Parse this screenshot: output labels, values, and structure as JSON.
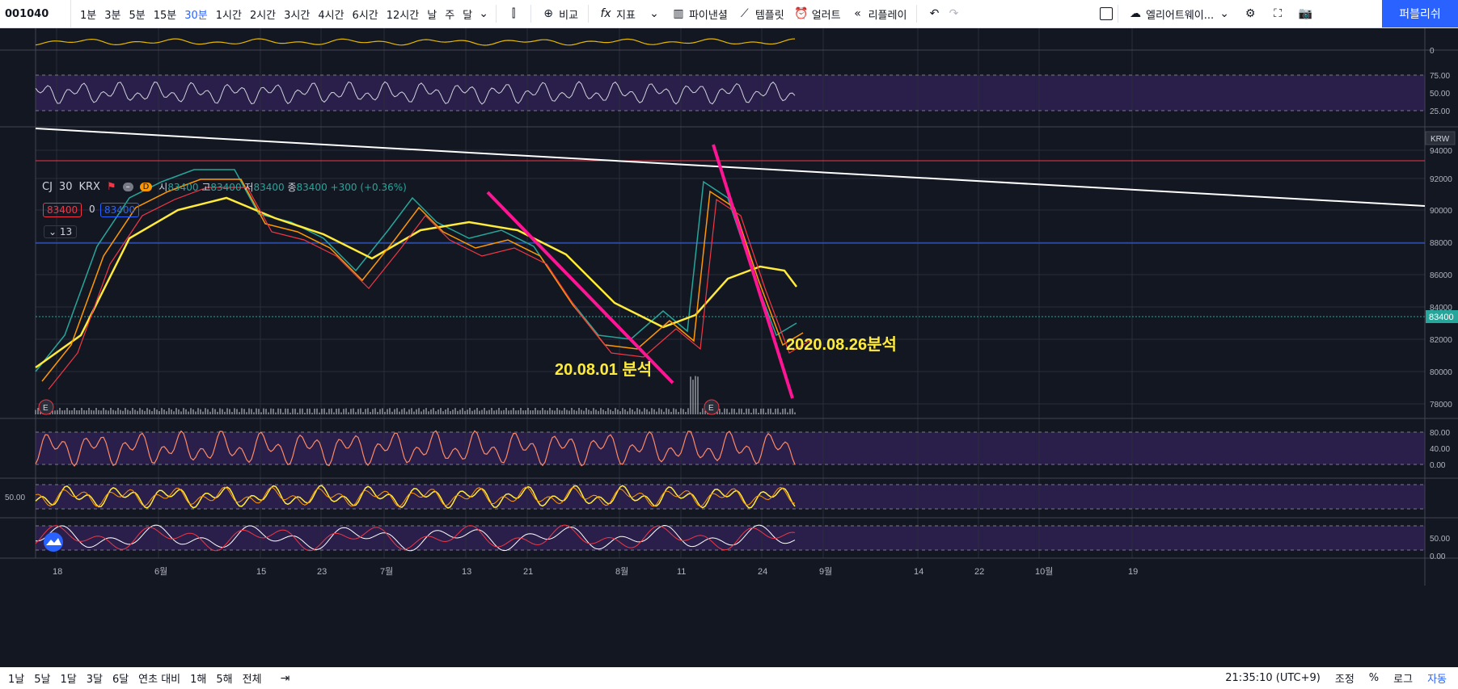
{
  "topbar": {
    "symbol": "001040",
    "timeframes": [
      "1분",
      "3분",
      "5분",
      "15분",
      "30분",
      "1시간",
      "2시간",
      "3시간",
      "4시간",
      "6시간",
      "12시간",
      "날",
      "주",
      "달"
    ],
    "active_timeframe": "30분",
    "compare_label": "비교",
    "indicators_label": "지표",
    "financials_label": "파이낸셜",
    "templates_label": "템플릿",
    "alert_label": "얼러트",
    "replay_label": "리플레이",
    "layout_name": "엘리어트웨이...",
    "publish_label": "퍼블리쉬"
  },
  "legend": {
    "symbol": "CJ",
    "interval": "30",
    "exchange": "KRX",
    "o_label": "시",
    "o": "83400",
    "h_label": "고",
    "h": "83400",
    "l_label": "저",
    "l": "83400",
    "c_label": "종",
    "c": "83400",
    "change": "+300 (+0.36%)",
    "bid": "83400",
    "spread": "0",
    "ask": "83400",
    "collapse_count": "13"
  },
  "price_axis": {
    "currency": "KRW",
    "ticks": [
      "94000",
      "92000",
      "90000",
      "88000",
      "86000",
      "84000",
      "82000",
      "80000",
      "78000"
    ],
    "last_price": "83400"
  },
  "indicator_axes": {
    "top_zero": "0",
    "rsi_ticks": [
      "75.00",
      "50.00",
      "25.00"
    ],
    "osc1_ticks": [
      "80.00",
      "40.00",
      "0.00"
    ],
    "osc2_left": "50.00",
    "osc3_ticks": [
      "50.00",
      "0.00"
    ]
  },
  "time_axis": [
    "18",
    "6월",
    "15",
    "23",
    "7월",
    "13",
    "21",
    "8월",
    "11",
    "24",
    "9월",
    "14",
    "22",
    "10월",
    "19"
  ],
  "annotations": {
    "left": "20.08.01 분석",
    "right": "2020.08.26분석"
  },
  "colors": {
    "accent": "#2962ff",
    "pink": "#ff1493",
    "yellow": "#ffeb3b",
    "orange": "#ff9800",
    "red": "#f23645",
    "teal": "#26a69a"
  },
  "bottombar": {
    "ranges": [
      "1날",
      "5날",
      "1달",
      "3달",
      "6달",
      "연초 대비",
      "1해",
      "5해",
      "전체"
    ],
    "time": "21:35:10 (UTC+9)",
    "adjust": "조정",
    "percent": "%",
    "log": "로그",
    "auto": "자동"
  }
}
